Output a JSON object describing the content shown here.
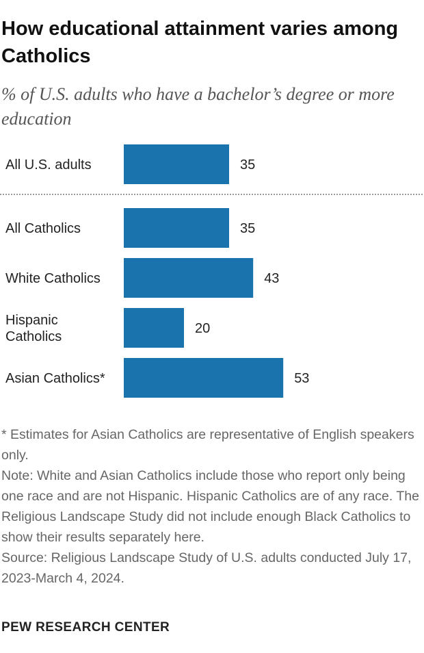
{
  "title": "How educational attainment varies among Catholics",
  "subtitle": "% of U.S. adults who have a bachelor’s degree or more education",
  "chart_data": {
    "type": "bar",
    "orientation": "horizontal",
    "categories": [
      [
        "All U.S. adults"
      ],
      [
        "All Catholics"
      ],
      [
        "White Catholics"
      ],
      [
        "Hispanic",
        "Catholics"
      ],
      [
        "Asian Catholics*"
      ]
    ],
    "values": [
      35,
      35,
      43,
      20,
      53
    ],
    "data_labels": [
      "35",
      "35",
      "43",
      "20",
      "53"
    ],
    "xlim": [
      0,
      100
    ],
    "bar_color": "#1a73ac",
    "separator_after_index": 0
  },
  "notes": {
    "asterisk": "* Estimates for Asian Catholics are representative of English speakers only.",
    "note": "Note: White and Asian Catholics include those who report only being one race and are not Hispanic. Hispanic Catholics are of any race. The Religious Landscape Study did not include enough Black Catholics to show their results separately here.",
    "source": "Source: Religious Landscape Study of U.S. adults conducted July 17, 2023-March 4, 2024."
  },
  "brand": "PEW RESEARCH CENTER"
}
